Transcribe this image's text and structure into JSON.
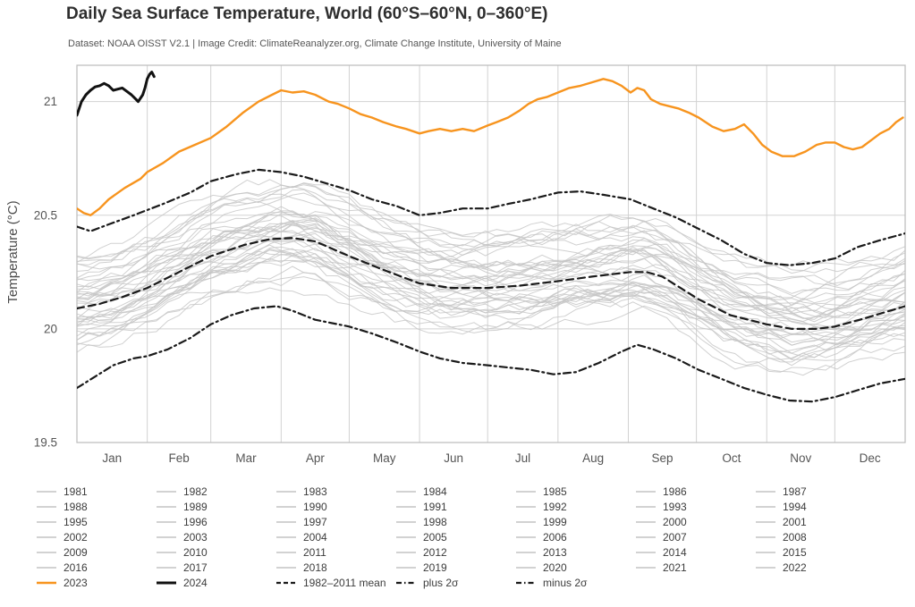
{
  "header": {
    "title": "Daily Sea Surface Temperature, World (60°S–60°N, 0–360°E)",
    "subtitle": "Dataset: NOAA OISST V2.1 | Image Credit: ClimateReanalyzer.org, Climate Change Institute, University of Maine"
  },
  "chart_data": {
    "type": "line",
    "title": "Daily Sea Surface Temperature, World (60°S–60°N, 0–360°E)",
    "subtitle": "Dataset: NOAA OISST V2.1 | Image Credit: ClimateReanalyzer.org, Climate Change Institute, University of Maine",
    "xlabel": "",
    "ylabel": "Temperature (°C)",
    "x_unit": "day_of_year",
    "xlim": [
      0,
      365
    ],
    "ylim": [
      19.5,
      21.16
    ],
    "ytick_values": [
      21,
      20.5,
      20,
      19.5
    ],
    "ytick_labels": [
      "21",
      "20.5",
      "20",
      "19.5"
    ],
    "month_labels": [
      "Jan",
      "Feb",
      "Mar",
      "Apr",
      "May",
      "Jun",
      "Jul",
      "Aug",
      "Sep",
      "Oct",
      "Nov",
      "Dec"
    ],
    "month_start_days": [
      0,
      31,
      59,
      90,
      120,
      151,
      181,
      212,
      243,
      273,
      304,
      334,
      365
    ],
    "grid": true,
    "legend_position": "bottom",
    "colors": {
      "accent_2023": "#F7941E",
      "line_2024": "#111111",
      "background_year": "#C4C4C4",
      "sigma_lines": "#1a1a1a",
      "gridline": "#D2D2D2",
      "plot_border": "#BBBBBB",
      "axis_text": "#555555",
      "legend_text": "#3c3c3c"
    },
    "series": [
      {
        "name": "1982–2011 mean",
        "style": "dashed",
        "color": "#1a1a1a",
        "width": 2.2,
        "points": [
          [
            0,
            20.09
          ],
          [
            10,
            20.11
          ],
          [
            20,
            20.14
          ],
          [
            31,
            20.18
          ],
          [
            45,
            20.25
          ],
          [
            59,
            20.32
          ],
          [
            74,
            20.37
          ],
          [
            85,
            20.395
          ],
          [
            95,
            20.4
          ],
          [
            105,
            20.385
          ],
          [
            120,
            20.32
          ],
          [
            135,
            20.26
          ],
          [
            151,
            20.2
          ],
          [
            165,
            20.18
          ],
          [
            181,
            20.18
          ],
          [
            195,
            20.19
          ],
          [
            212,
            20.21
          ],
          [
            227,
            20.23
          ],
          [
            244,
            20.25
          ],
          [
            251,
            20.25
          ],
          [
            258,
            20.23
          ],
          [
            274,
            20.13
          ],
          [
            288,
            20.06
          ],
          [
            304,
            20.02
          ],
          [
            315,
            20.0
          ],
          [
            326,
            20.0
          ],
          [
            334,
            20.01
          ],
          [
            345,
            20.04
          ],
          [
            355,
            20.07
          ],
          [
            365,
            20.1
          ]
        ]
      },
      {
        "name": "plus 2σ",
        "style": "dashdot",
        "color": "#1a1a1a",
        "width": 2.2,
        "points": [
          [
            0,
            20.45
          ],
          [
            6,
            20.43
          ],
          [
            14,
            20.46
          ],
          [
            25,
            20.5
          ],
          [
            38,
            20.55
          ],
          [
            50,
            20.6
          ],
          [
            59,
            20.65
          ],
          [
            70,
            20.68
          ],
          [
            80,
            20.7
          ],
          [
            90,
            20.69
          ],
          [
            100,
            20.67
          ],
          [
            110,
            20.64
          ],
          [
            120,
            20.61
          ],
          [
            130,
            20.57
          ],
          [
            141,
            20.54
          ],
          [
            151,
            20.5
          ],
          [
            160,
            20.51
          ],
          [
            170,
            20.53
          ],
          [
            181,
            20.53
          ],
          [
            190,
            20.55
          ],
          [
            200,
            20.57
          ],
          [
            212,
            20.6
          ],
          [
            222,
            20.605
          ],
          [
            232,
            20.59
          ],
          [
            244,
            20.57
          ],
          [
            254,
            20.53
          ],
          [
            264,
            20.49
          ],
          [
            274,
            20.44
          ],
          [
            284,
            20.39
          ],
          [
            294,
            20.33
          ],
          [
            304,
            20.29
          ],
          [
            314,
            20.28
          ],
          [
            324,
            20.29
          ],
          [
            334,
            20.31
          ],
          [
            344,
            20.36
          ],
          [
            354,
            20.39
          ],
          [
            365,
            20.42
          ]
        ]
      },
      {
        "name": "minus 2σ",
        "style": "dashdot",
        "color": "#1a1a1a",
        "width": 2.2,
        "points": [
          [
            0,
            19.74
          ],
          [
            8,
            19.79
          ],
          [
            16,
            19.84
          ],
          [
            25,
            19.87
          ],
          [
            31,
            19.88
          ],
          [
            40,
            19.91
          ],
          [
            50,
            19.96
          ],
          [
            59,
            20.02
          ],
          [
            68,
            20.06
          ],
          [
            78,
            20.09
          ],
          [
            88,
            20.1
          ],
          [
            95,
            20.08
          ],
          [
            105,
            20.04
          ],
          [
            120,
            20.01
          ],
          [
            130,
            19.98
          ],
          [
            141,
            19.94
          ],
          [
            151,
            19.9
          ],
          [
            160,
            19.87
          ],
          [
            170,
            19.85
          ],
          [
            181,
            19.84
          ],
          [
            190,
            19.83
          ],
          [
            200,
            19.82
          ],
          [
            210,
            19.8
          ],
          [
            220,
            19.81
          ],
          [
            230,
            19.85
          ],
          [
            240,
            19.9
          ],
          [
            247,
            19.93
          ],
          [
            254,
            19.91
          ],
          [
            264,
            19.87
          ],
          [
            274,
            19.82
          ],
          [
            284,
            19.78
          ],
          [
            294,
            19.74
          ],
          [
            304,
            19.71
          ],
          [
            314,
            19.685
          ],
          [
            324,
            19.68
          ],
          [
            334,
            19.7
          ],
          [
            344,
            19.73
          ],
          [
            354,
            19.76
          ],
          [
            365,
            19.78
          ]
        ]
      },
      {
        "name": "2023",
        "style": "solid",
        "color": "#F7941E",
        "width": 2.4,
        "points": [
          [
            0,
            20.53
          ],
          [
            3,
            20.51
          ],
          [
            6,
            20.5
          ],
          [
            10,
            20.53
          ],
          [
            14,
            20.57
          ],
          [
            21,
            20.62
          ],
          [
            28,
            20.66
          ],
          [
            31,
            20.69
          ],
          [
            38,
            20.73
          ],
          [
            45,
            20.78
          ],
          [
            52,
            20.81
          ],
          [
            59,
            20.84
          ],
          [
            66,
            20.89
          ],
          [
            73,
            20.95
          ],
          [
            80,
            21.0
          ],
          [
            86,
            21.03
          ],
          [
            90,
            21.05
          ],
          [
            95,
            21.04
          ],
          [
            100,
            21.045
          ],
          [
            105,
            21.03
          ],
          [
            111,
            21.0
          ],
          [
            115,
            20.99
          ],
          [
            120,
            20.97
          ],
          [
            125,
            20.945
          ],
          [
            130,
            20.93
          ],
          [
            135,
            20.91
          ],
          [
            141,
            20.89
          ],
          [
            145,
            20.88
          ],
          [
            151,
            20.86
          ],
          [
            155,
            20.87
          ],
          [
            160,
            20.88
          ],
          [
            165,
            20.87
          ],
          [
            170,
            20.88
          ],
          [
            175,
            20.87
          ],
          [
            181,
            20.895
          ],
          [
            185,
            20.91
          ],
          [
            190,
            20.93
          ],
          [
            195,
            20.96
          ],
          [
            199,
            20.99
          ],
          [
            203,
            21.01
          ],
          [
            207,
            21.02
          ],
          [
            212,
            21.04
          ],
          [
            217,
            21.06
          ],
          [
            222,
            21.07
          ],
          [
            227,
            21.085
          ],
          [
            232,
            21.1
          ],
          [
            236,
            21.09
          ],
          [
            240,
            21.07
          ],
          [
            244,
            21.04
          ],
          [
            247,
            21.06
          ],
          [
            250,
            21.05
          ],
          [
            253,
            21.01
          ],
          [
            257,
            20.99
          ],
          [
            261,
            20.98
          ],
          [
            265,
            20.97
          ],
          [
            270,
            20.95
          ],
          [
            274,
            20.93
          ],
          [
            280,
            20.89
          ],
          [
            285,
            20.87
          ],
          [
            290,
            20.88
          ],
          [
            294,
            20.9
          ],
          [
            298,
            20.86
          ],
          [
            302,
            20.81
          ],
          [
            306,
            20.78
          ],
          [
            311,
            20.76
          ],
          [
            316,
            20.76
          ],
          [
            321,
            20.78
          ],
          [
            326,
            20.81
          ],
          [
            330,
            20.82
          ],
          [
            334,
            20.82
          ],
          [
            338,
            20.8
          ],
          [
            342,
            20.79
          ],
          [
            346,
            20.8
          ],
          [
            350,
            20.83
          ],
          [
            354,
            20.86
          ],
          [
            358,
            20.88
          ],
          [
            361,
            20.91
          ],
          [
            364,
            20.93
          ]
        ]
      },
      {
        "name": "2024",
        "style": "solid",
        "color": "#111111",
        "width": 3,
        "points": [
          [
            0,
            20.94
          ],
          [
            2,
            21.0
          ],
          [
            4,
            21.03
          ],
          [
            6,
            21.05
          ],
          [
            8,
            21.065
          ],
          [
            10,
            21.07
          ],
          [
            12,
            21.08
          ],
          [
            14,
            21.07
          ],
          [
            16,
            21.05
          ],
          [
            18,
            21.055
          ],
          [
            20,
            21.06
          ],
          [
            22,
            21.045
          ],
          [
            24,
            21.03
          ],
          [
            26,
            21.01
          ],
          [
            27,
            21.0
          ],
          [
            29,
            21.03
          ],
          [
            30,
            21.06
          ],
          [
            31,
            21.1
          ],
          [
            32,
            21.12
          ],
          [
            33,
            21.13
          ],
          [
            34,
            21.11
          ]
        ]
      }
    ],
    "background_years": [
      {
        "year": 1981,
        "offset": -0.1
      },
      {
        "year": 1982,
        "offset": -0.14
      },
      {
        "year": 1983,
        "offset": -0.05
      },
      {
        "year": 1984,
        "offset": -0.16
      },
      {
        "year": 1985,
        "offset": -0.18
      },
      {
        "year": 1986,
        "offset": -0.12
      },
      {
        "year": 1987,
        "offset": -0.02
      },
      {
        "year": 1988,
        "offset": -0.07
      },
      {
        "year": 1989,
        "offset": -0.13
      },
      {
        "year": 1990,
        "offset": -0.05
      },
      {
        "year": 1991,
        "offset": -0.06
      },
      {
        "year": 1992,
        "offset": -0.13
      },
      {
        "year": 1993,
        "offset": -0.09
      },
      {
        "year": 1994,
        "offset": -0.06
      },
      {
        "year": 1995,
        "offset": -0.01
      },
      {
        "year": 1996,
        "offset": -0.06
      },
      {
        "year": 1997,
        "offset": 0.05
      },
      {
        "year": 1998,
        "offset": 0.1
      },
      {
        "year": 1999,
        "offset": -0.06
      },
      {
        "year": 2000,
        "offset": -0.04
      },
      {
        "year": 2001,
        "offset": 0.03
      },
      {
        "year": 2002,
        "offset": 0.08
      },
      {
        "year": 2003,
        "offset": 0.09
      },
      {
        "year": 2004,
        "offset": 0.06
      },
      {
        "year": 2005,
        "offset": 0.08
      },
      {
        "year": 2006,
        "offset": 0.07
      },
      {
        "year": 2007,
        "offset": 0.04
      },
      {
        "year": 2008,
        "offset": 0.02
      },
      {
        "year": 2009,
        "offset": 0.09
      },
      {
        "year": 2010,
        "offset": 0.11
      },
      {
        "year": 2011,
        "offset": 0.02
      },
      {
        "year": 2012,
        "offset": 0.05
      },
      {
        "year": 2013,
        "offset": 0.09
      },
      {
        "year": 2014,
        "offset": 0.14
      },
      {
        "year": 2015,
        "offset": 0.21
      },
      {
        "year": 2016,
        "offset": 0.23
      },
      {
        "year": 2017,
        "offset": 0.19
      },
      {
        "year": 2018,
        "offset": 0.15
      },
      {
        "year": 2019,
        "offset": 0.21
      },
      {
        "year": 2020,
        "offset": 0.23
      },
      {
        "year": 2021,
        "offset": 0.17
      },
      {
        "year": 2022,
        "offset": 0.19
      }
    ]
  }
}
